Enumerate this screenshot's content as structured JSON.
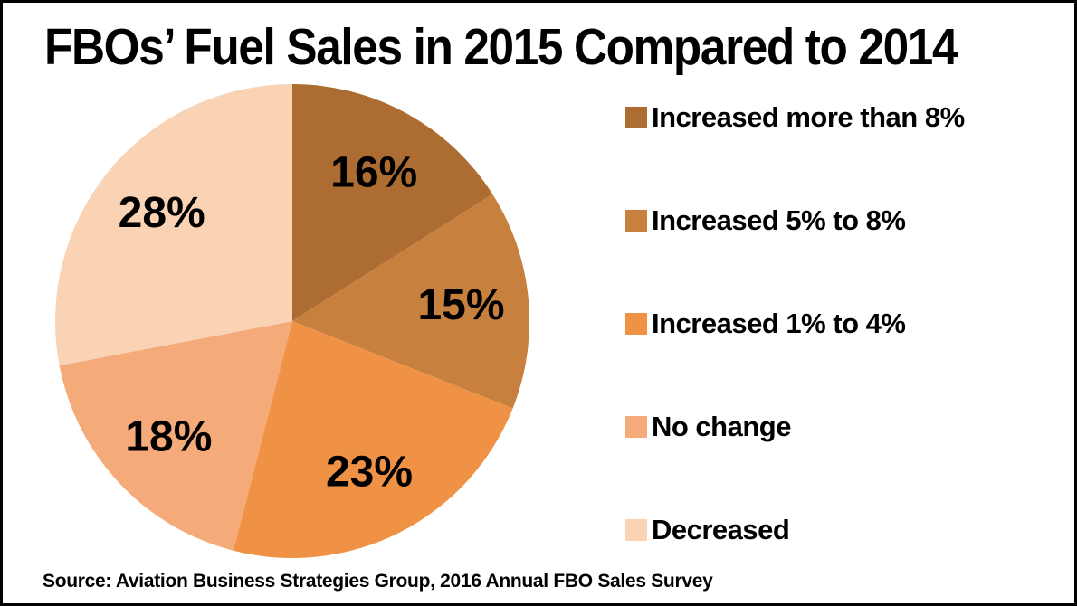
{
  "title": "FBOs’ Fuel Sales in 2015 Compared to 2014",
  "source": "Source: Aviation Business Strategies Group, 2016 Annual FBO Sales Survey",
  "chart_data": {
    "type": "pie",
    "title": "FBOs’ Fuel Sales in 2015 Compared to 2014",
    "start_angle_deg": 0,
    "direction": "clockwise",
    "legend_position": "right",
    "slices": [
      {
        "label": "Increased more than 8%",
        "value": 16,
        "data_label": "16%",
        "color": "#ad6c31"
      },
      {
        "label": "Increased 5% to 8%",
        "value": 15,
        "data_label": "15%",
        "color": "#c8803f"
      },
      {
        "label": "Increased 1% to 4%",
        "value": 23,
        "data_label": "23%",
        "color": "#f09245"
      },
      {
        "label": "No change",
        "value": 18,
        "data_label": "18%",
        "color": "#f5aa79"
      },
      {
        "label": "Decreased",
        "value": 28,
        "data_label": "28%",
        "color": "#f9d3b4"
      }
    ]
  }
}
